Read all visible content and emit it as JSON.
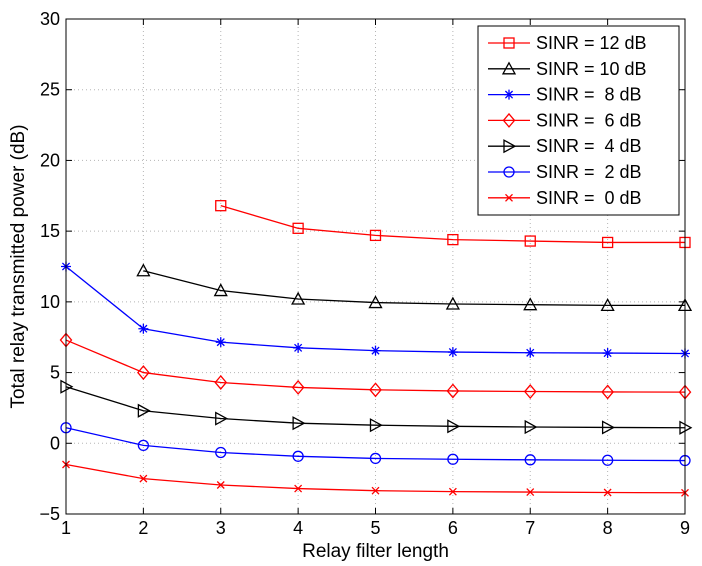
{
  "chart_data": {
    "type": "line",
    "title": "",
    "xlabel": "Relay filter length",
    "ylabel": "Total relay transmitted power (dB)",
    "xlim": [
      1,
      9
    ],
    "ylim": [
      -5,
      30
    ],
    "xticks": [
      1,
      2,
      3,
      4,
      5,
      6,
      7,
      8,
      9
    ],
    "yticks": [
      -5,
      0,
      5,
      10,
      15,
      20,
      25,
      30
    ],
    "ytick_labels": [
      "−5",
      "0",
      "5",
      "10",
      "15",
      "20",
      "25",
      "30"
    ],
    "grid": true,
    "legend_position": "top-right",
    "series": [
      {
        "name": "SINR = 12 dB",
        "color": "#ff0000",
        "marker": "square",
        "x": [
          3,
          4,
          5,
          6,
          7,
          8,
          9
        ],
        "values": [
          16.8,
          15.2,
          14.7,
          14.4,
          14.3,
          14.2,
          14.2
        ]
      },
      {
        "name": "SINR = 10 dB",
        "color": "#000000",
        "marker": "triangle-up",
        "x": [
          2,
          3,
          4,
          5,
          6,
          7,
          8,
          9
        ],
        "values": [
          12.2,
          10.8,
          10.2,
          9.95,
          9.85,
          9.8,
          9.75,
          9.75
        ]
      },
      {
        "name": "SINR =  8 dB",
        "color": "#0000ff",
        "marker": "star",
        "x": [
          1,
          2,
          3,
          4,
          5,
          6,
          7,
          8,
          9
        ],
        "values": [
          12.5,
          8.1,
          7.15,
          6.75,
          6.55,
          6.45,
          6.4,
          6.38,
          6.35
        ]
      },
      {
        "name": "SINR =  6 dB",
        "color": "#ff0000",
        "marker": "diamond",
        "x": [
          1,
          2,
          3,
          4,
          5,
          6,
          7,
          8,
          9
        ],
        "values": [
          7.3,
          5.0,
          4.3,
          3.95,
          3.78,
          3.7,
          3.66,
          3.63,
          3.62
        ]
      },
      {
        "name": "SINR =  4 dB",
        "color": "#000000",
        "marker": "triangle-right",
        "x": [
          1,
          2,
          3,
          4,
          5,
          6,
          7,
          8,
          9
        ],
        "values": [
          4.0,
          2.3,
          1.75,
          1.42,
          1.28,
          1.2,
          1.15,
          1.12,
          1.1
        ]
      },
      {
        "name": "SINR =  2 dB",
        "color": "#0000ff",
        "marker": "circle",
        "x": [
          1,
          2,
          3,
          4,
          5,
          6,
          7,
          8,
          9
        ],
        "values": [
          1.1,
          -0.15,
          -0.65,
          -0.92,
          -1.07,
          -1.13,
          -1.17,
          -1.2,
          -1.22
        ]
      },
      {
        "name": "SINR =  0 dB",
        "color": "#ff0000",
        "marker": "x",
        "x": [
          1,
          2,
          3,
          4,
          5,
          6,
          7,
          8,
          9
        ],
        "values": [
          -1.5,
          -2.5,
          -2.95,
          -3.2,
          -3.35,
          -3.42,
          -3.45,
          -3.48,
          -3.5
        ]
      }
    ]
  }
}
